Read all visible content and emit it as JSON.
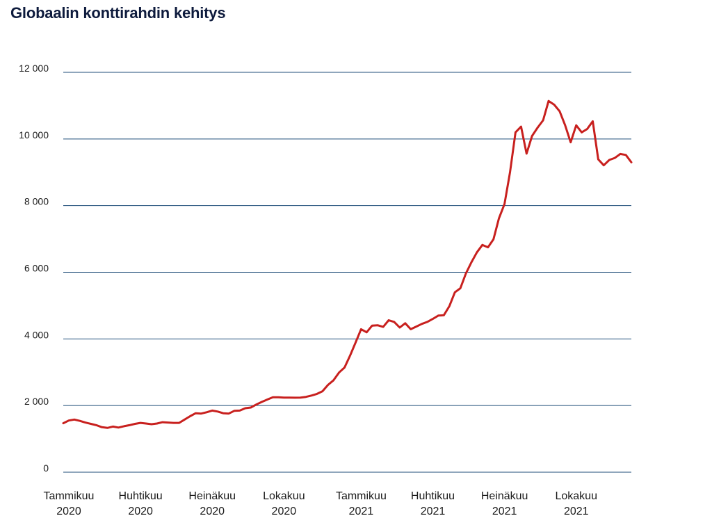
{
  "title": "Globaalin konttirahdin kehitys",
  "chart_data": {
    "type": "line",
    "title": "Globaalin konttirahdin kehitys",
    "xlabel": "",
    "ylabel": "",
    "ylim": [
      0,
      12000
    ],
    "grid": "horizontal",
    "legend": "none",
    "line_color": "#c8201e",
    "grid_color": "#1f4e79",
    "y_ticks": [
      {
        "value": 0,
        "label": "0"
      },
      {
        "value": 2000,
        "label": "2 000"
      },
      {
        "value": 4000,
        "label": "4 000"
      },
      {
        "value": 6000,
        "label": "6 000"
      },
      {
        "value": 8000,
        "label": "8 000"
      },
      {
        "value": 10000,
        "label": "10 000"
      },
      {
        "value": 12000,
        "label": "12 000"
      }
    ],
    "x_ticks": [
      {
        "month": "Tammikuu",
        "year": "2020",
        "index": 0
      },
      {
        "month": "Huhtikuu",
        "year": "2020",
        "index": 13
      },
      {
        "month": "Heinäkuu",
        "year": "2020",
        "index": 26
      },
      {
        "month": "Lokakuu",
        "year": "2020",
        "index": 39
      },
      {
        "month": "Tammikuu",
        "year": "2021",
        "index": 53
      },
      {
        "month": "Huhtikuu",
        "year": "2021",
        "index": 66
      },
      {
        "month": "Heinäkuu",
        "year": "2021",
        "index": 79
      },
      {
        "month": "Lokakuu",
        "year": "2021",
        "index": 92
      }
    ],
    "series": [
      {
        "values": [
          1470,
          1550,
          1580,
          1540,
          1490,
          1450,
          1410,
          1350,
          1330,
          1370,
          1340,
          1380,
          1410,
          1450,
          1480,
          1460,
          1440,
          1460,
          1500,
          1490,
          1480,
          1480,
          1580,
          1680,
          1770,
          1760,
          1800,
          1850,
          1820,
          1770,
          1760,
          1840,
          1850,
          1920,
          1940,
          2030,
          2110,
          2180,
          2250,
          2250,
          2240,
          2240,
          2235,
          2240,
          2260,
          2300,
          2350,
          2430,
          2620,
          2760,
          2990,
          3140,
          3500,
          3890,
          4290,
          4200,
          4400,
          4410,
          4360,
          4560,
          4510,
          4340,
          4470,
          4290,
          4370,
          4450,
          4510,
          4600,
          4700,
          4710,
          4980,
          5400,
          5520,
          5960,
          6300,
          6600,
          6820,
          6750,
          6990,
          7620,
          8050,
          9000,
          10200,
          10370,
          9560,
          10090,
          10340,
          10560,
          11140,
          11030,
          10830,
          10410,
          9900,
          10410,
          10200,
          10300,
          10530,
          9390,
          9210,
          9370,
          9430,
          9550,
          9520,
          9300
        ]
      }
    ]
  }
}
